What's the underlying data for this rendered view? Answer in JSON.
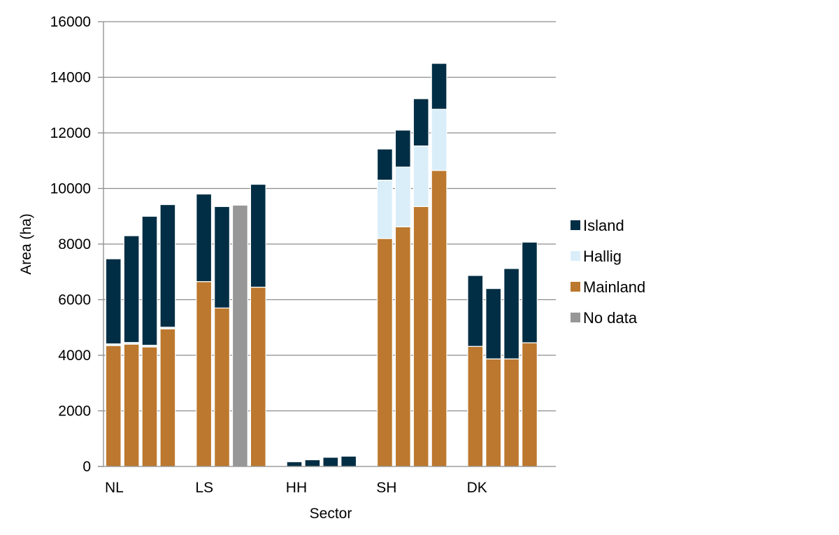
{
  "chart_data": {
    "type": "bar",
    "stacked": true,
    "title": "",
    "xlabel": "Sector",
    "ylabel": "Area (ha)",
    "ylim": [
      0,
      16000
    ],
    "yticks": [
      0,
      2000,
      4000,
      6000,
      8000,
      10000,
      12000,
      14000,
      16000
    ],
    "grid": true,
    "legend_position": "right",
    "groups": [
      "NL",
      "LS",
      "HH",
      "SH",
      "DK"
    ],
    "bars_per_group": 4,
    "series": [
      {
        "name": "Mainland",
        "color": "#BC782E",
        "values": [
          [
            4350,
            4400,
            4300,
            4950
          ],
          [
            6650,
            5700,
            0,
            6450
          ],
          [
            0,
            0,
            0,
            0
          ],
          [
            8200,
            8620,
            9350,
            10650
          ],
          [
            4320,
            3870,
            3870,
            4450
          ]
        ]
      },
      {
        "name": "Hallig",
        "color": "#DAEEF9",
        "values": [
          [
            60,
            60,
            60,
            60
          ],
          [
            0,
            0,
            0,
            0
          ],
          [
            0,
            0,
            0,
            0
          ],
          [
            2100,
            2150,
            2180,
            2200
          ],
          [
            0,
            0,
            0,
            0
          ]
        ]
      },
      {
        "name": "Island",
        "color": "#012E45",
        "values": [
          [
            3060,
            3840,
            4640,
            4410
          ],
          [
            3150,
            3650,
            0,
            3700
          ],
          [
            170,
            240,
            330,
            370
          ],
          [
            1120,
            1330,
            1700,
            1650
          ],
          [
            2550,
            2530,
            3250,
            3620
          ]
        ]
      },
      {
        "name": "No data",
        "color": "#979797",
        "values": [
          [
            0,
            0,
            0,
            0
          ],
          [
            0,
            0,
            9400,
            0
          ],
          [
            0,
            0,
            0,
            0
          ],
          [
            0,
            0,
            0,
            0
          ],
          [
            0,
            0,
            0,
            0
          ]
        ]
      }
    ],
    "legend_order": [
      "Island",
      "Hallig",
      "Mainland",
      "No data"
    ]
  }
}
